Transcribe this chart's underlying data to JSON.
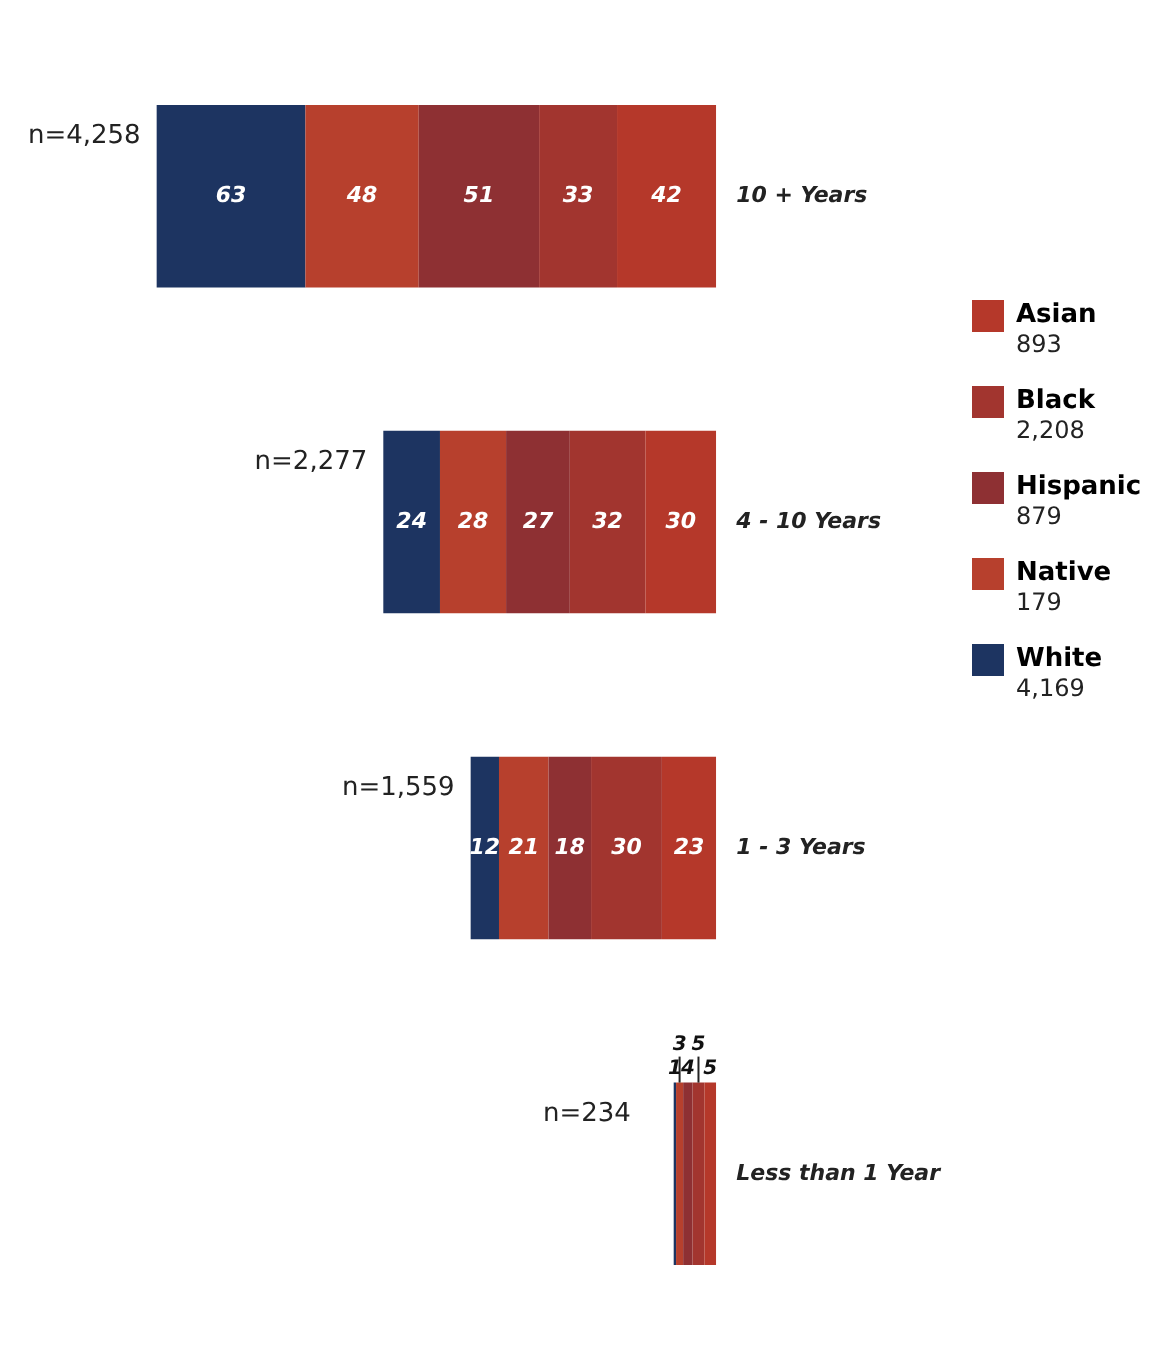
{
  "chart_data": {
    "type": "bar",
    "stacked": true,
    "orientation": "horizontal",
    "data_labels": true,
    "legend": "right",
    "grid": false,
    "categories": [
      "10 + Years",
      "4 - 10 Years",
      "1 - 3 Years",
      "Less than 1 Year"
    ],
    "series": [
      {
        "name": "Asian",
        "color": "#b5382a",
        "values": [
          42,
          30,
          23,
          5
        ]
      },
      {
        "name": "Black",
        "color": "#a2352f",
        "values": [
          33,
          32,
          30,
          5
        ]
      },
      {
        "name": "Hispanic",
        "color": "#8e3033",
        "values": [
          51,
          27,
          18,
          4
        ]
      },
      {
        "name": "Native",
        "color": "#b7402d",
        "values": [
          48,
          28,
          21,
          3
        ]
      },
      {
        "name": "White",
        "color": "#1d3461",
        "values": [
          63,
          24,
          12,
          1
        ]
      }
    ],
    "annotations": [
      "n=4,258",
      "n=2,277",
      "n=1,559",
      "n=234",
      "893",
      "2,208",
      "879",
      "179",
      "4,169"
    ]
  }
}
